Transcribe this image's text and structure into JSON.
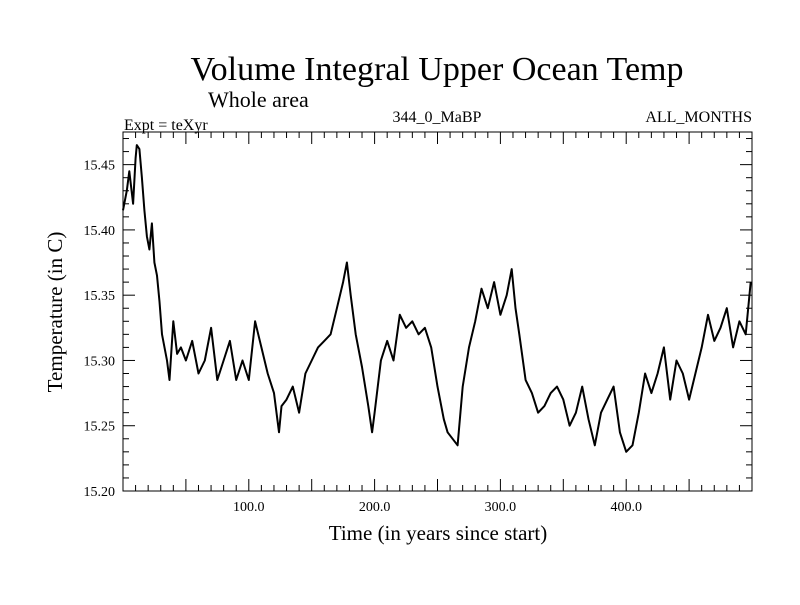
{
  "chart_data": {
    "type": "line",
    "title": "Volume Integral Upper Ocean Temp",
    "subtitle": "Whole area",
    "expt_label": "Expt = teXyr",
    "run_label": "344_0_MaBP",
    "months_label": "ALL_MONTHS",
    "xlabel": "Time (in years since start)",
    "ylabel": "Temperature (in C)",
    "xlim": [
      0,
      500
    ],
    "ylim": [
      15.2,
      15.475
    ],
    "xticks": [
      {
        "value": 100,
        "label": "100.0"
      },
      {
        "value": 200,
        "label": "200.0"
      },
      {
        "value": 300,
        "label": "300.0"
      },
      {
        "value": 400,
        "label": "400.0"
      }
    ],
    "yticks": [
      {
        "value": 15.2,
        "label": "15.20"
      },
      {
        "value": 15.25,
        "label": "15.25"
      },
      {
        "value": 15.3,
        "label": "15.30"
      },
      {
        "value": 15.35,
        "label": "15.35"
      },
      {
        "value": 15.4,
        "label": "15.40"
      },
      {
        "value": 15.45,
        "label": "15.45"
      }
    ],
    "grid": false,
    "line_color": "#000000",
    "series": [
      {
        "x": [
          0,
          3,
          5,
          8,
          10,
          11,
          13,
          15,
          17,
          19,
          21,
          23,
          25,
          27,
          29,
          31,
          33,
          35,
          37,
          40,
          43,
          46,
          50,
          55,
          60,
          65,
          70,
          75,
          80,
          85,
          90,
          95,
          100,
          105,
          110,
          115,
          120,
          124,
          126,
          130,
          135,
          140,
          145,
          150,
          155,
          160,
          165,
          170,
          175,
          178,
          181,
          185,
          190,
          195,
          198,
          200,
          205,
          210,
          215,
          220,
          225,
          230,
          235,
          240,
          245,
          250,
          255,
          258,
          262,
          266,
          270,
          275,
          280,
          285,
          290,
          295,
          300,
          305,
          309,
          312,
          315,
          320,
          325,
          330,
          335,
          340,
          345,
          350,
          355,
          360,
          365,
          370,
          375,
          380,
          385,
          390,
          395,
          400,
          405,
          410,
          415,
          420,
          425,
          430,
          435,
          440,
          445,
          450,
          455,
          460,
          465,
          470,
          475,
          480,
          485,
          490,
          495,
          499
        ],
        "y": [
          15.415,
          15.43,
          15.445,
          15.42,
          15.455,
          15.465,
          15.462,
          15.44,
          15.415,
          15.395,
          15.385,
          15.405,
          15.375,
          15.365,
          15.345,
          15.32,
          15.31,
          15.3,
          15.285,
          15.33,
          15.305,
          15.31,
          15.3,
          15.315,
          15.29,
          15.3,
          15.325,
          15.285,
          15.3,
          15.315,
          15.285,
          15.3,
          15.285,
          15.33,
          15.31,
          15.29,
          15.275,
          15.245,
          15.265,
          15.27,
          15.28,
          15.26,
          15.29,
          15.3,
          15.31,
          15.315,
          15.32,
          15.34,
          15.36,
          15.375,
          15.35,
          15.32,
          15.295,
          15.265,
          15.245,
          15.26,
          15.3,
          15.315,
          15.3,
          15.335,
          15.325,
          15.33,
          15.32,
          15.325,
          15.31,
          15.28,
          15.255,
          15.245,
          15.24,
          15.235,
          15.28,
          15.31,
          15.33,
          15.355,
          15.34,
          15.36,
          15.335,
          15.35,
          15.37,
          15.34,
          15.32,
          15.285,
          15.275,
          15.26,
          15.265,
          15.275,
          15.28,
          15.27,
          15.25,
          15.26,
          15.28,
          15.255,
          15.235,
          15.26,
          15.27,
          15.28,
          15.245,
          15.23,
          15.235,
          15.26,
          15.29,
          15.275,
          15.29,
          15.31,
          15.27,
          15.3,
          15.29,
          15.27,
          15.29,
          15.31,
          15.335,
          15.315,
          15.325,
          15.34,
          15.31,
          15.33,
          15.32,
          15.36
        ]
      }
    ]
  }
}
